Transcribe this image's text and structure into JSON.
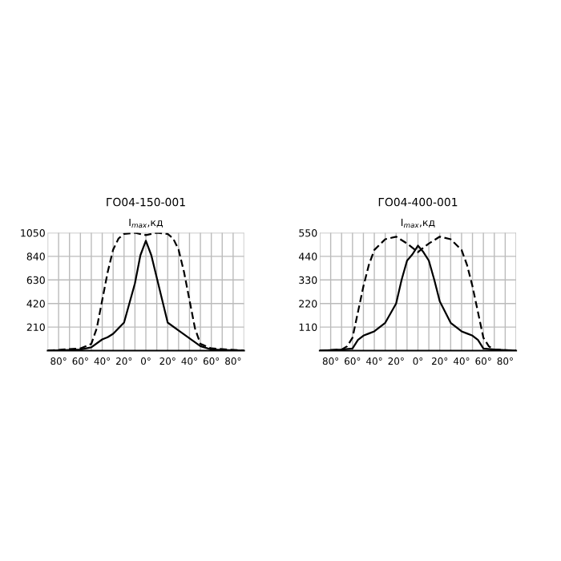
{
  "chart_data": [
    {
      "type": "line",
      "title": "ГО04-150-001",
      "ylabel": "I$_{max}$,кд",
      "grid": true,
      "xlim": [
        -90,
        90
      ],
      "ylim": [
        0,
        1050
      ],
      "xticks": [
        {
          "value": -90,
          "label": null
        },
        {
          "value": -80,
          "label": "80°"
        },
        {
          "value": -70,
          "label": null
        },
        {
          "value": -60,
          "label": "60°"
        },
        {
          "value": -50,
          "label": null
        },
        {
          "value": -40,
          "label": "40°"
        },
        {
          "value": -30,
          "label": null
        },
        {
          "value": -20,
          "label": "20°"
        },
        {
          "value": -10,
          "label": null
        },
        {
          "value": 0,
          "label": "0°"
        },
        {
          "value": 10,
          "label": null
        },
        {
          "value": 20,
          "label": "20°"
        },
        {
          "value": 30,
          "label": null
        },
        {
          "value": 40,
          "label": "40°"
        },
        {
          "value": 50,
          "label": null
        },
        {
          "value": 60,
          "label": "60°"
        },
        {
          "value": 70,
          "label": null
        },
        {
          "value": 80,
          "label": "80°"
        },
        {
          "value": 90,
          "label": null
        }
      ],
      "yticks": [
        210,
        420,
        630,
        840,
        1050
      ],
      "series": [
        {
          "color": "#000000",
          "line_style": "solid",
          "x": [
            -90,
            -60,
            -50,
            -40,
            -35,
            -30,
            -20,
            -10,
            -5,
            0,
            5,
            10,
            20,
            30,
            40,
            50,
            60,
            90
          ],
          "values": [
            0,
            10,
            30,
            100,
            120,
            150,
            250,
            600,
            850,
            980,
            850,
            650,
            250,
            180,
            110,
            40,
            10,
            0
          ]
        },
        {
          "color": "#000000",
          "line_style": "dashed",
          "x": [
            -90,
            -60,
            -50,
            -45,
            -40,
            -35,
            -30,
            -25,
            -20,
            -10,
            0,
            10,
            20,
            25,
            30,
            35,
            40,
            45,
            50,
            60,
            90
          ],
          "values": [
            0,
            20,
            60,
            200,
            450,
            700,
            900,
            1000,
            1040,
            1050,
            1030,
            1050,
            1040,
            1000,
            900,
            700,
            450,
            200,
            60,
            20,
            0
          ]
        }
      ]
    },
    {
      "type": "line",
      "title": "ГО04-400-001",
      "ylabel": "I$_{max}$,кд",
      "grid": true,
      "xlim": [
        -90,
        90
      ],
      "ylim": [
        0,
        550
      ],
      "xticks": [
        {
          "value": -90,
          "label": null
        },
        {
          "value": -80,
          "label": "80°"
        },
        {
          "value": -70,
          "label": null
        },
        {
          "value": -60,
          "label": "60°"
        },
        {
          "value": -50,
          "label": null
        },
        {
          "value": -40,
          "label": "40°"
        },
        {
          "value": -30,
          "label": null
        },
        {
          "value": -20,
          "label": "20°"
        },
        {
          "value": -10,
          "label": null
        },
        {
          "value": 0,
          "label": "0°"
        },
        {
          "value": 10,
          "label": null
        },
        {
          "value": 20,
          "label": "20°"
        },
        {
          "value": 30,
          "label": null
        },
        {
          "value": 40,
          "label": "40°"
        },
        {
          "value": 50,
          "label": null
        },
        {
          "value": 60,
          "label": "60°"
        },
        {
          "value": 70,
          "label": null
        },
        {
          "value": 80,
          "label": "80°"
        },
        {
          "value": 90,
          "label": null
        }
      ],
      "yticks": [
        110,
        220,
        330,
        440,
        550
      ],
      "series": [
        {
          "color": "#000000",
          "line_style": "solid",
          "x": [
            -90,
            -70,
            -60,
            -55,
            -50,
            -45,
            -40,
            -30,
            -20,
            -15,
            -10,
            -5,
            0,
            5,
            10,
            15,
            20,
            30,
            40,
            45,
            50,
            55,
            60,
            70,
            90
          ],
          "values": [
            0,
            5,
            10,
            50,
            70,
            80,
            90,
            130,
            220,
            330,
            420,
            450,
            490,
            460,
            420,
            330,
            230,
            130,
            90,
            80,
            70,
            50,
            10,
            5,
            0
          ]
        },
        {
          "color": "#000000",
          "line_style": "dashed",
          "x": [
            -90,
            -70,
            -65,
            -60,
            -55,
            -50,
            -45,
            -40,
            -30,
            -20,
            -10,
            0,
            10,
            20,
            30,
            40,
            45,
            50,
            55,
            60,
            65,
            70,
            90
          ],
          "values": [
            0,
            5,
            20,
            60,
            180,
            300,
            400,
            470,
            520,
            532,
            500,
            460,
            500,
            532,
            520,
            470,
            400,
            300,
            180,
            60,
            20,
            5,
            0
          ]
        }
      ]
    }
  ]
}
